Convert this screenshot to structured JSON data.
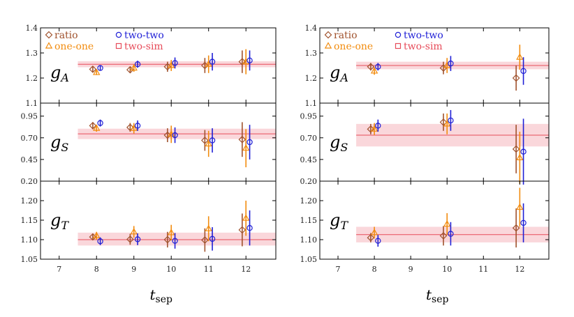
{
  "colors": {
    "ratio": "#a0522d",
    "one_one": "#f28c0f",
    "two_two": "#1f1fd6",
    "two_sim": "#e74c5a",
    "band": "#f8c9cf"
  },
  "legend": [
    {
      "key": "ratio",
      "label": "ratio",
      "marker": "diamond"
    },
    {
      "key": "one_one",
      "label": "one-one",
      "marker": "triangle"
    },
    {
      "key": "two_two",
      "label": "two-two",
      "marker": "circle"
    },
    {
      "key": "two_sim",
      "label": "two-sim",
      "marker": "square"
    }
  ],
  "chart_data": [
    {
      "type": "scatter",
      "xlabel": {
        "main": "t",
        "sub": "sep"
      },
      "xlim": [
        6.5,
        12.8
      ],
      "xticks": [
        7,
        8,
        9,
        10,
        11,
        12
      ],
      "tick_labels": [
        "7",
        "8",
        "9",
        "10",
        "11",
        "12"
      ],
      "panels": [
        {
          "label": {
            "main": "g",
            "sub": "A"
          },
          "ylim": [
            1.1,
            1.4
          ],
          "yticks": [
            1.1,
            1.2,
            1.3,
            1.4
          ],
          "ytick_labels": [
            "1.1",
            "1.2",
            "1.3",
            "1.4"
          ],
          "band": {
            "center": 1.255,
            "low": 1.243,
            "high": 1.267,
            "xstart": 7.5
          },
          "series": [
            {
              "key": "ratio",
              "x": [
                7.9,
                8.9,
                9.9,
                10.9,
                11.9
              ],
              "y": [
                1.235,
                1.233,
                1.245,
                1.25,
                1.265
              ],
              "err": [
                0.01,
                0.012,
                0.02,
                0.03,
                0.045
              ]
            },
            {
              "key": "one_one",
              "x": [
                8.0,
                9.0,
                10.0,
                11.0,
                12.0
              ],
              "y": [
                1.222,
                1.24,
                1.25,
                1.255,
                1.265
              ],
              "err": [
                0.01,
                0.015,
                0.022,
                0.035,
                0.05
              ]
            },
            {
              "key": "two_two",
              "x": [
                8.1,
                9.1,
                10.1,
                11.1,
                12.1
              ],
              "y": [
                1.24,
                1.255,
                1.26,
                1.265,
                1.27
              ],
              "err": [
                0.01,
                0.014,
                0.022,
                0.035,
                0.04
              ]
            }
          ]
        },
        {
          "label": {
            "main": "g",
            "sub": "S"
          },
          "ylim": [
            0.2,
            1.1
          ],
          "yticks": [
            0.2,
            0.45,
            0.7,
            0.95
          ],
          "ytick_labels": [
            "0.20",
            "0.45",
            "0.70",
            "0.95"
          ],
          "band": {
            "center": 0.745,
            "low": 0.685,
            "high": 0.805,
            "xstart": 7.5
          },
          "series": [
            {
              "key": "ratio",
              "x": [
                7.9,
                8.9,
                9.9,
                10.9,
                11.9
              ],
              "y": [
                0.84,
                0.82,
                0.73,
                0.67,
                0.68
              ],
              "err": [
                0.04,
                0.05,
                0.08,
                0.12,
                0.2
              ]
            },
            {
              "key": "one_one",
              "x": [
                8.0,
                9.0,
                10.0,
                11.0,
                12.0
              ],
              "y": [
                0.81,
                0.81,
                0.74,
                0.63,
                0.58
              ],
              "err": [
                0.04,
                0.06,
                0.1,
                0.15,
                0.22
              ]
            },
            {
              "key": "two_two",
              "x": [
                8.1,
                9.1,
                10.1,
                11.1,
                12.1
              ],
              "y": [
                0.87,
                0.84,
                0.73,
                0.67,
                0.65
              ],
              "err": [
                0.04,
                0.06,
                0.09,
                0.14,
                0.2
              ]
            }
          ]
        },
        {
          "label": {
            "main": "g",
            "sub": "T"
          },
          "ylim": [
            1.05,
            1.25
          ],
          "yticks": [
            1.05,
            1.1,
            1.15,
            1.2
          ],
          "ytick_labels": [
            "1.05",
            "1.10",
            "1.15",
            "1.20"
          ],
          "band": {
            "center": 1.1,
            "low": 1.085,
            "high": 1.118,
            "xstart": 7.5
          },
          "series": [
            {
              "key": "ratio",
              "x": [
                7.9,
                8.9,
                9.9,
                10.9,
                11.9
              ],
              "y": [
                1.107,
                1.101,
                1.1,
                1.099,
                1.125
              ],
              "err": [
                0.008,
                0.014,
                0.02,
                0.03,
                0.042
              ]
            },
            {
              "key": "one_one",
              "x": [
                8.0,
                9.0,
                10.0,
                11.0,
                12.0
              ],
              "y": [
                1.11,
                1.12,
                1.118,
                1.128,
                1.155
              ],
              "err": [
                0.01,
                0.015,
                0.02,
                0.032,
                0.045
              ]
            },
            {
              "key": "two_two",
              "x": [
                8.1,
                9.1,
                10.1,
                11.1,
                12.1
              ],
              "y": [
                1.096,
                1.101,
                1.097,
                1.102,
                1.13
              ],
              "err": [
                0.01,
                0.015,
                0.02,
                0.03,
                0.045
              ]
            }
          ]
        }
      ]
    },
    {
      "type": "scatter",
      "xlabel": {
        "main": "t",
        "sub": "sep"
      },
      "xlim": [
        6.5,
        12.8
      ],
      "xticks": [
        7,
        8,
        9,
        10,
        11,
        12
      ],
      "tick_labels": [
        "7",
        "8",
        "9",
        "10",
        "11",
        "12"
      ],
      "panels": [
        {
          "label": {
            "main": "g",
            "sub": "A"
          },
          "ylim": [
            1.1,
            1.4
          ],
          "yticks": [
            1.1,
            1.2,
            1.3,
            1.4
          ],
          "ytick_labels": [
            "1.1",
            "1.2",
            "1.3",
            "1.4"
          ],
          "band": {
            "center": 1.25,
            "low": 1.235,
            "high": 1.265,
            "xstart": 7.5
          },
          "series": [
            {
              "key": "ratio",
              "x": [
                7.9,
                9.9,
                11.9
              ],
              "y": [
                1.245,
                1.24,
                1.2
              ],
              "err": [
                0.015,
                0.025,
                0.05
              ]
            },
            {
              "key": "one_one",
              "x": [
                8.0,
                10.0,
                12.0
              ],
              "y": [
                1.228,
                1.25,
                1.283
              ],
              "err": [
                0.015,
                0.03,
                0.05
              ]
            },
            {
              "key": "two_two",
              "x": [
                8.1,
                10.1,
                12.1
              ],
              "y": [
                1.245,
                1.258,
                1.228
              ],
              "err": [
                0.015,
                0.03,
                0.055
              ]
            }
          ]
        },
        {
          "label": {
            "main": "g",
            "sub": "S"
          },
          "ylim": [
            0.2,
            1.1
          ],
          "yticks": [
            0.2,
            0.45,
            0.7,
            0.95
          ],
          "ytick_labels": [
            "0.20",
            "0.45",
            "0.70",
            "0.95"
          ],
          "band": {
            "center": 0.73,
            "low": 0.6,
            "high": 0.86,
            "xstart": 7.5
          },
          "series": [
            {
              "key": "ratio",
              "x": [
                7.9,
                9.9,
                11.9
              ],
              "y": [
                0.8,
                0.88,
                0.57
              ],
              "err": [
                0.06,
                0.1,
                0.28
              ]
            },
            {
              "key": "one_one",
              "x": [
                8.0,
                10.0,
                12.0
              ],
              "y": [
                0.8,
                0.86,
                0.47
              ],
              "err": [
                0.07,
                0.12,
                0.3
              ]
            },
            {
              "key": "two_two",
              "x": [
                8.1,
                10.1,
                12.1
              ],
              "y": [
                0.84,
                0.9,
                0.54
              ],
              "err": [
                0.07,
                0.12,
                0.38
              ]
            }
          ]
        },
        {
          "label": {
            "main": "g",
            "sub": "T"
          },
          "ylim": [
            1.05,
            1.25
          ],
          "yticks": [
            1.05,
            1.1,
            1.15,
            1.2
          ],
          "ytick_labels": [
            "1.05",
            "1.10",
            "1.15",
            "1.20"
          ],
          "band": {
            "center": 1.113,
            "low": 1.093,
            "high": 1.133,
            "xstart": 7.5
          },
          "series": [
            {
              "key": "ratio",
              "x": [
                7.9,
                9.9,
                11.9
              ],
              "y": [
                1.105,
                1.11,
                1.13
              ],
              "err": [
                0.012,
                0.025,
                0.05
              ]
            },
            {
              "key": "one_one",
              "x": [
                8.0,
                10.0,
                12.0
              ],
              "y": [
                1.118,
                1.14,
                1.183
              ],
              "err": [
                0.015,
                0.028,
                0.05
              ]
            },
            {
              "key": "two_two",
              "x": [
                8.1,
                10.1,
                12.1
              ],
              "y": [
                1.097,
                1.115,
                1.143
              ],
              "err": [
                0.015,
                0.03,
                0.05
              ]
            }
          ]
        }
      ]
    }
  ]
}
